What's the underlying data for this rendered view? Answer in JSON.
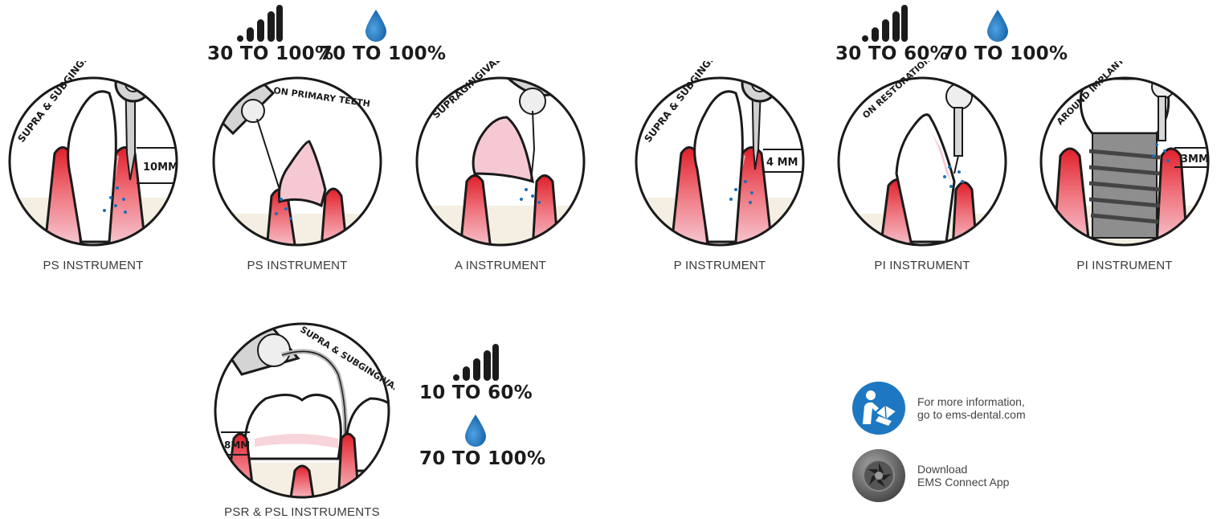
{
  "instruments": [
    {
      "id": "c1",
      "caption": "PS INSTRUMENT",
      "arc": "SUPRA & SUBGINGIVAL",
      "depth": "10MM"
    },
    {
      "id": "c2",
      "caption": "PS INSTRUMENT",
      "arc": "ON PRIMARY TEETH",
      "depth": ""
    },
    {
      "id": "c3",
      "caption": "A INSTRUMENT",
      "arc": "SUPRAGINGIVAL",
      "depth": ""
    },
    {
      "id": "c4",
      "caption": "P INSTRUMENT",
      "arc": "SUPRA & SUBGINGIVAL",
      "depth": "4 MM"
    },
    {
      "id": "c5",
      "caption": "PI INSTRUMENT",
      "arc": "ON RESTORATIONS",
      "depth": ""
    },
    {
      "id": "c6",
      "caption": "PI INSTRUMENT",
      "arc": "AROUND IMPLANTS",
      "depth": "3MM"
    },
    {
      "id": "c7",
      "caption": "PSR & PSL INSTRUMENTS",
      "arc": "SUPRA & SUBGINGIVAL",
      "depth": "8MM"
    }
  ],
  "settings": {
    "group1": {
      "power": "30 TO 100%",
      "water": "70 TO 100%"
    },
    "group2": {
      "power": "30 TO 60%",
      "water": "70 TO 100%"
    },
    "group3": {
      "power": "10 TO 60%",
      "water": "70 TO 100%"
    }
  },
  "icons": {
    "power": "signal-bars-icon",
    "water": "water-drop-icon",
    "manual": "manual-reader-icon",
    "app": "ems-connect-app-icon"
  },
  "info": {
    "manual_line1": "For more information,",
    "manual_line2": "go to ems-dental.com",
    "app_line1": "Download",
    "app_line2": "EMS Connect App"
  },
  "colors": {
    "gum_red": "#e0202a",
    "gum_pink": "#f6c9d2",
    "drop_blue": "#1b6fb8",
    "outline": "#1a1a1a",
    "bone": "#f4efe2",
    "manual_blue": "#1d78c1"
  }
}
